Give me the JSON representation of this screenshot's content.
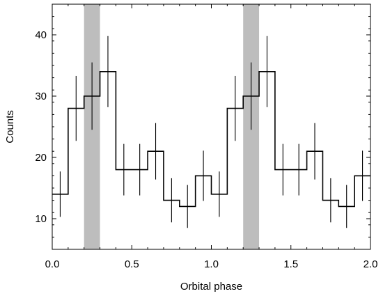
{
  "chart_data": {
    "type": "line",
    "style": "step-histogram-with-errorbars",
    "title": "",
    "xlabel": "Orbital phase",
    "ylabel": "Counts",
    "xlim": [
      0.0,
      2.0
    ],
    "ylim": [
      5,
      45
    ],
    "xticks": [
      0.0,
      0.5,
      1.0,
      1.5,
      2.0
    ],
    "xtick_labels": [
      "0.0",
      "0.5",
      "1.0",
      "1.5",
      "2.0"
    ],
    "yticks": [
      10,
      20,
      30,
      40
    ],
    "ytick_labels": [
      "10",
      "20",
      "30",
      "40"
    ],
    "grid": false,
    "bin_edges": [
      0.0,
      0.1,
      0.2,
      0.3,
      0.4,
      0.5,
      0.6,
      0.7,
      0.8,
      0.9,
      1.0,
      1.1,
      1.2,
      1.3,
      1.4,
      1.5,
      1.6,
      1.7,
      1.8,
      1.9,
      2.0
    ],
    "series": [
      {
        "values": [
          14,
          28,
          30,
          34,
          18,
          18,
          21,
          13,
          12,
          17,
          14,
          28,
          30,
          34,
          18,
          18,
          21,
          13,
          12,
          17
        ],
        "errors": [
          3.7,
          5.3,
          5.5,
          5.8,
          4.2,
          4.2,
          4.6,
          3.6,
          3.5,
          4.1,
          3.7,
          5.3,
          5.5,
          5.8,
          4.2,
          4.2,
          4.6,
          3.6,
          3.5,
          4.1
        ]
      }
    ],
    "shaded_regions": [
      {
        "x": [
          0.2,
          0.3
        ],
        "color": "#bdbdbd"
      },
      {
        "x": [
          1.2,
          1.3
        ],
        "color": "#bdbdbd"
      }
    ],
    "line_color": "#000000"
  }
}
